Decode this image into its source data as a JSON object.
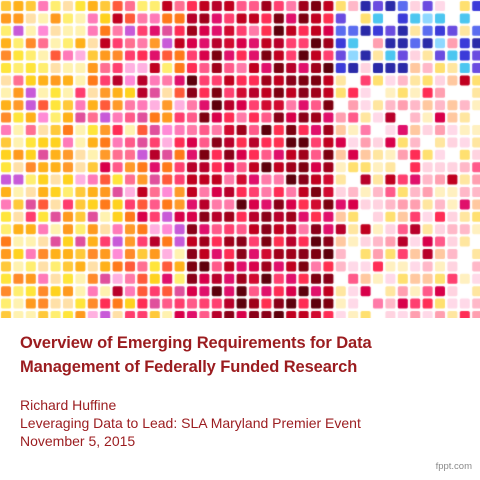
{
  "slide": {
    "title_line_1": "Overview of Emerging Requirements for Data",
    "title_line_2": "Management of Federally Funded Research",
    "author": "Richard Huffine",
    "event": "Leveraging Data to Lead: SLA Maryland Premier Event",
    "date": "November 5, 2015",
    "credit": "fppt.com"
  },
  "colors": {
    "title": "#9b1c1f",
    "subtitle": "#9b1c1f",
    "credit": "#8a8a8a",
    "mosaic_palette": [
      "#ffe33a",
      "#ffb21f",
      "#ff7a1a",
      "#ff3d6e",
      "#e0106b",
      "#c0001f",
      "#7d0010",
      "#ff8ad6",
      "#c85ad8",
      "#ffffff",
      "#3b3bd9",
      "#4cc6f0"
    ]
  }
}
